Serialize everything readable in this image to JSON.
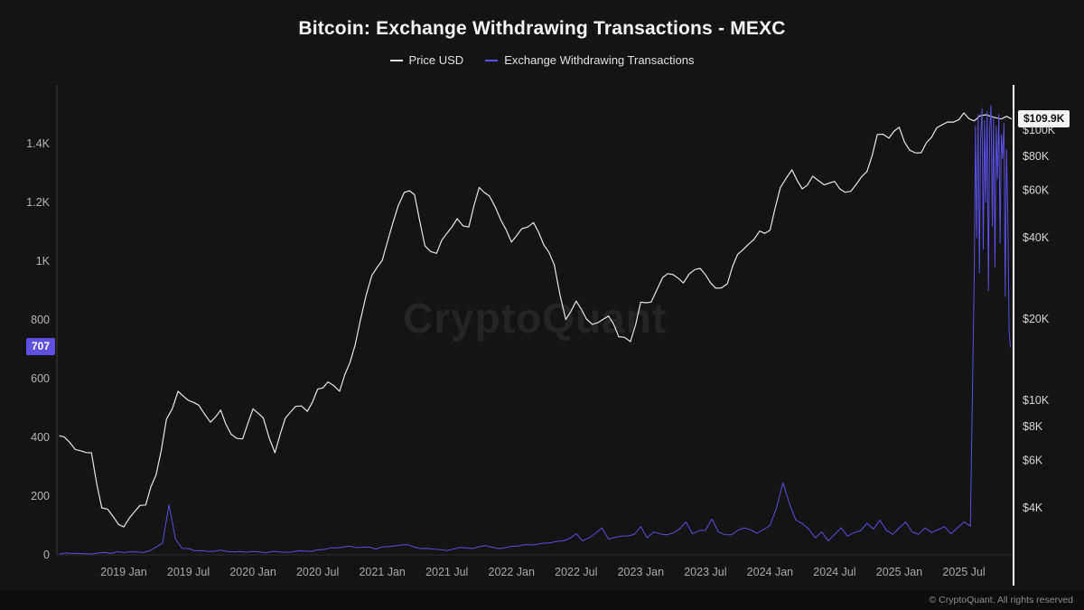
{
  "watermark": {
    "text": "CryptoQuant"
  },
  "footer": {
    "copyright": "© CryptoQuant. All rights reserved"
  },
  "chart_data": {
    "type": "line",
    "title": "Bitcoin: Exchange Withdrawing Transactions - MEXC",
    "legend_position": "top",
    "grid": false,
    "background": "#141414",
    "x_axis": {
      "range": [
        2018.5,
        2025.9
      ],
      "ticks": [
        {
          "t": 2019.0,
          "label": "2019 Jan"
        },
        {
          "t": 2019.5,
          "label": "2019 Jul"
        },
        {
          "t": 2020.0,
          "label": "2020 Jan"
        },
        {
          "t": 2020.5,
          "label": "2020 Jul"
        },
        {
          "t": 2021.0,
          "label": "2021 Jan"
        },
        {
          "t": 2021.5,
          "label": "2021 Jul"
        },
        {
          "t": 2022.0,
          "label": "2022 Jan"
        },
        {
          "t": 2022.5,
          "label": "2022 Jul"
        },
        {
          "t": 2023.0,
          "label": "2023 Jan"
        },
        {
          "t": 2023.5,
          "label": "2023 Jul"
        },
        {
          "t": 2024.0,
          "label": "2024 Jan"
        },
        {
          "t": 2024.5,
          "label": "2024 Jul"
        },
        {
          "t": 2025.0,
          "label": "2025 Jan"
        },
        {
          "t": 2025.5,
          "label": "2025 Jul"
        }
      ]
    },
    "y_left": {
      "label": "Exchange Withdrawing Transactions",
      "scale": "linear",
      "range": [
        0,
        1600
      ],
      "ticks": [
        {
          "v": 0,
          "label": "0"
        },
        {
          "v": 200,
          "label": "200"
        },
        {
          "v": 400,
          "label": "400"
        },
        {
          "v": 600,
          "label": "600"
        },
        {
          "v": 800,
          "label": "800"
        },
        {
          "v": 1000,
          "label": "1K"
        },
        {
          "v": 1200,
          "label": "1.2K"
        },
        {
          "v": 1400,
          "label": "1.4K"
        }
      ]
    },
    "y_right": {
      "label": "Price USD",
      "scale": "log",
      "range": [
        2700,
        146000
      ],
      "ticks": [
        {
          "v": 4000,
          "label": "$4K"
        },
        {
          "v": 6000,
          "label": "$6K"
        },
        {
          "v": 8000,
          "label": "$8K"
        },
        {
          "v": 10000,
          "label": "$10K"
        },
        {
          "v": 20000,
          "label": "$20K"
        },
        {
          "v": 40000,
          "label": "$40K"
        },
        {
          "v": 60000,
          "label": "$60K"
        },
        {
          "v": 80000,
          "label": "$80K"
        },
        {
          "v": 100000,
          "label": "$100K"
        }
      ]
    },
    "series": [
      {
        "name": "Price USD",
        "axis": "right",
        "color": "#e6e6e6",
        "points": [
          [
            2018.5,
            7400
          ],
          [
            2018.58,
            7000
          ],
          [
            2018.67,
            6500
          ],
          [
            2018.75,
            6400
          ],
          [
            2018.83,
            4000
          ],
          [
            2018.92,
            3700
          ],
          [
            2019,
            3400
          ],
          [
            2019.08,
            3850
          ],
          [
            2019.17,
            4100
          ],
          [
            2019.25,
            5300
          ],
          [
            2019.33,
            8500
          ],
          [
            2019.42,
            10800
          ],
          [
            2019.5,
            10000
          ],
          [
            2019.58,
            9600
          ],
          [
            2019.67,
            8300
          ],
          [
            2019.75,
            9200
          ],
          [
            2019.83,
            7500
          ],
          [
            2019.92,
            7200
          ],
          [
            2020,
            9300
          ],
          [
            2020.08,
            8600
          ],
          [
            2020.17,
            6400
          ],
          [
            2020.25,
            8600
          ],
          [
            2020.33,
            9500
          ],
          [
            2020.42,
            9100
          ],
          [
            2020.5,
            11000
          ],
          [
            2020.58,
            11700
          ],
          [
            2020.67,
            10800
          ],
          [
            2020.75,
            13800
          ],
          [
            2020.83,
            19700
          ],
          [
            2020.92,
            29000
          ],
          [
            2021,
            33000
          ],
          [
            2021.08,
            45000
          ],
          [
            2021.17,
            58800
          ],
          [
            2021.25,
            57700
          ],
          [
            2021.33,
            37300
          ],
          [
            2021.42,
            35000
          ],
          [
            2021.5,
            41500
          ],
          [
            2021.58,
            47000
          ],
          [
            2021.67,
            43800
          ],
          [
            2021.75,
            61300
          ],
          [
            2021.83,
            57000
          ],
          [
            2021.92,
            46200
          ],
          [
            2022,
            38500
          ],
          [
            2022.08,
            43200
          ],
          [
            2022.17,
            45500
          ],
          [
            2022.25,
            37600
          ],
          [
            2022.33,
            31800
          ],
          [
            2022.42,
            19900
          ],
          [
            2022.5,
            23300
          ],
          [
            2022.58,
            20000
          ],
          [
            2022.67,
            19400
          ],
          [
            2022.75,
            20500
          ],
          [
            2022.83,
            17200
          ],
          [
            2022.92,
            16500
          ],
          [
            2023,
            23100
          ],
          [
            2023.08,
            23100
          ],
          [
            2023.17,
            28500
          ],
          [
            2023.25,
            29200
          ],
          [
            2023.33,
            27200
          ],
          [
            2023.42,
            30500
          ],
          [
            2023.5,
            29200
          ],
          [
            2023.58,
            26000
          ],
          [
            2023.67,
            27000
          ],
          [
            2023.75,
            34700
          ],
          [
            2023.83,
            37700
          ],
          [
            2023.92,
            42300
          ],
          [
            2024,
            42600
          ],
          [
            2024.08,
            61200
          ],
          [
            2024.17,
            71300
          ],
          [
            2024.25,
            60600
          ],
          [
            2024.33,
            67500
          ],
          [
            2024.42,
            62700
          ],
          [
            2024.5,
            64600
          ],
          [
            2024.58,
            58900
          ],
          [
            2024.67,
            63300
          ],
          [
            2024.75,
            70200
          ],
          [
            2024.83,
            96400
          ],
          [
            2024.92,
            93400
          ],
          [
            2025,
            102400
          ],
          [
            2025.08,
            84400
          ],
          [
            2025.17,
            82500
          ],
          [
            2025.25,
            94200
          ],
          [
            2025.33,
            104600
          ],
          [
            2025.42,
            107100
          ],
          [
            2025.5,
            115800
          ],
          [
            2025.58,
            108200
          ],
          [
            2025.67,
            114000
          ],
          [
            2025.75,
            111000
          ],
          [
            2025.83,
            112500
          ],
          [
            2025.87,
            109900
          ]
        ]
      },
      {
        "name": "Exchange Withdrawing Transactions",
        "axis": "left",
        "color": "#5a4fe0",
        "points": [
          [
            2018.5,
            3
          ],
          [
            2018.6,
            5
          ],
          [
            2018.7,
            4
          ],
          [
            2018.8,
            6
          ],
          [
            2018.9,
            5
          ],
          [
            2019,
            8
          ],
          [
            2019.1,
            10
          ],
          [
            2019.2,
            14
          ],
          [
            2019.3,
            40
          ],
          [
            2019.35,
            170
          ],
          [
            2019.4,
            55
          ],
          [
            2019.45,
            22
          ],
          [
            2019.55,
            14
          ],
          [
            2019.65,
            12
          ],
          [
            2019.75,
            16
          ],
          [
            2019.85,
            10
          ],
          [
            2019.95,
            9
          ],
          [
            2020.05,
            10
          ],
          [
            2020.15,
            12
          ],
          [
            2020.25,
            9
          ],
          [
            2020.35,
            14
          ],
          [
            2020.45,
            12
          ],
          [
            2020.55,
            18
          ],
          [
            2020.65,
            24
          ],
          [
            2020.75,
            30
          ],
          [
            2020.85,
            26
          ],
          [
            2020.95,
            20
          ],
          [
            2021.05,
            28
          ],
          [
            2021.15,
            34
          ],
          [
            2021.25,
            26
          ],
          [
            2021.35,
            22
          ],
          [
            2021.45,
            18
          ],
          [
            2021.55,
            20
          ],
          [
            2021.65,
            24
          ],
          [
            2021.75,
            28
          ],
          [
            2021.85,
            26
          ],
          [
            2021.95,
            24
          ],
          [
            2022.05,
            30
          ],
          [
            2022.15,
            34
          ],
          [
            2022.25,
            40
          ],
          [
            2022.35,
            46
          ],
          [
            2022.45,
            56
          ],
          [
            2022.5,
            72
          ],
          [
            2022.55,
            48
          ],
          [
            2022.6,
            58
          ],
          [
            2022.7,
            92
          ],
          [
            2022.75,
            54
          ],
          [
            2022.85,
            64
          ],
          [
            2022.95,
            70
          ],
          [
            2023,
            96
          ],
          [
            2023.05,
            58
          ],
          [
            2023.1,
            78
          ],
          [
            2023.2,
            68
          ],
          [
            2023.3,
            88
          ],
          [
            2023.35,
            112
          ],
          [
            2023.4,
            72
          ],
          [
            2023.5,
            84
          ],
          [
            2023.55,
            122
          ],
          [
            2023.6,
            78
          ],
          [
            2023.7,
            68
          ],
          [
            2023.8,
            92
          ],
          [
            2023.9,
            74
          ],
          [
            2023.95,
            86
          ],
          [
            2024,
            100
          ],
          [
            2024.05,
            160
          ],
          [
            2024.1,
            245
          ],
          [
            2024.15,
            175
          ],
          [
            2024.2,
            118
          ],
          [
            2024.3,
            88
          ],
          [
            2024.35,
            58
          ],
          [
            2024.4,
            78
          ],
          [
            2024.45,
            48
          ],
          [
            2024.5,
            70
          ],
          [
            2024.55,
            92
          ],
          [
            2024.6,
            64
          ],
          [
            2024.7,
            82
          ],
          [
            2024.75,
            108
          ],
          [
            2024.8,
            88
          ],
          [
            2024.85,
            118
          ],
          [
            2024.9,
            84
          ],
          [
            2024.95,
            70
          ],
          [
            2025,
            92
          ],
          [
            2025.05,
            112
          ],
          [
            2025.1,
            78
          ],
          [
            2025.15,
            70
          ],
          [
            2025.2,
            92
          ],
          [
            2025.25,
            76
          ],
          [
            2025.3,
            86
          ],
          [
            2025.35,
            96
          ],
          [
            2025.4,
            72
          ],
          [
            2025.45,
            92
          ],
          [
            2025.5,
            112
          ],
          [
            2025.55,
            98
          ],
          [
            2025.58,
            950
          ],
          [
            2025.59,
            1460
          ],
          [
            2025.6,
            1080
          ],
          [
            2025.61,
            1500
          ],
          [
            2025.62,
            960
          ],
          [
            2025.63,
            1420
          ],
          [
            2025.64,
            1520
          ],
          [
            2025.65,
            1040
          ],
          [
            2025.66,
            1480
          ],
          [
            2025.67,
            1200
          ],
          [
            2025.68,
            1510
          ],
          [
            2025.69,
            900
          ],
          [
            2025.7,
            1450
          ],
          [
            2025.71,
            1530
          ],
          [
            2025.72,
            1120
          ],
          [
            2025.73,
            1490
          ],
          [
            2025.74,
            980
          ],
          [
            2025.75,
            1460
          ],
          [
            2025.76,
            1280
          ],
          [
            2025.77,
            1500
          ],
          [
            2025.78,
            1060
          ],
          [
            2025.79,
            1430
          ],
          [
            2025.8,
            1350
          ],
          [
            2025.81,
            1470
          ],
          [
            2025.82,
            880
          ],
          [
            2025.83,
            1380
          ],
          [
            2025.84,
            1150
          ],
          [
            2025.85,
            760
          ],
          [
            2025.86,
            707
          ]
        ]
      }
    ],
    "annotations": {
      "last_price": {
        "label": "$109.9K",
        "value": 109900,
        "bg": "#f2f2f2",
        "fg": "#101010"
      },
      "last_withdrawals": {
        "label": "707",
        "value": 707,
        "bg": "#6050e0",
        "fg": "#ffffff"
      }
    }
  }
}
